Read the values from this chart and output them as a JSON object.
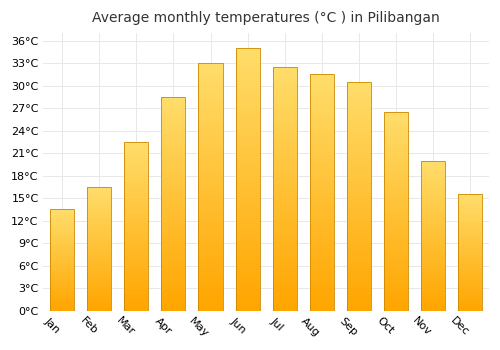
{
  "title": "Average monthly temperatures (°C ) in Pilibangan",
  "months": [
    "Jan",
    "Feb",
    "Mar",
    "Apr",
    "May",
    "Jun",
    "Jul",
    "Aug",
    "Sep",
    "Oct",
    "Nov",
    "Dec"
  ],
  "values": [
    13.5,
    16.5,
    22.5,
    28.5,
    33.0,
    35.0,
    32.5,
    31.5,
    30.5,
    26.5,
    20.0,
    15.5
  ],
  "bar_color_bottom": "#FFA500",
  "bar_color_top": "#FFD966",
  "bar_edge_color": "#CC8800",
  "background_color": "#FFFFFF",
  "grid_color": "#E8E8E8",
  "ylim": [
    0,
    37
  ],
  "yticks": [
    0,
    3,
    6,
    9,
    12,
    15,
    18,
    21,
    24,
    27,
    30,
    33,
    36
  ],
  "ytick_labels": [
    "0°C",
    "3°C",
    "6°C",
    "9°C",
    "12°C",
    "15°C",
    "18°C",
    "21°C",
    "24°C",
    "27°C",
    "30°C",
    "33°C",
    "36°C"
  ],
  "title_fontsize": 10,
  "tick_fontsize": 8,
  "bar_width": 0.65,
  "xlabel_rotation": -45
}
